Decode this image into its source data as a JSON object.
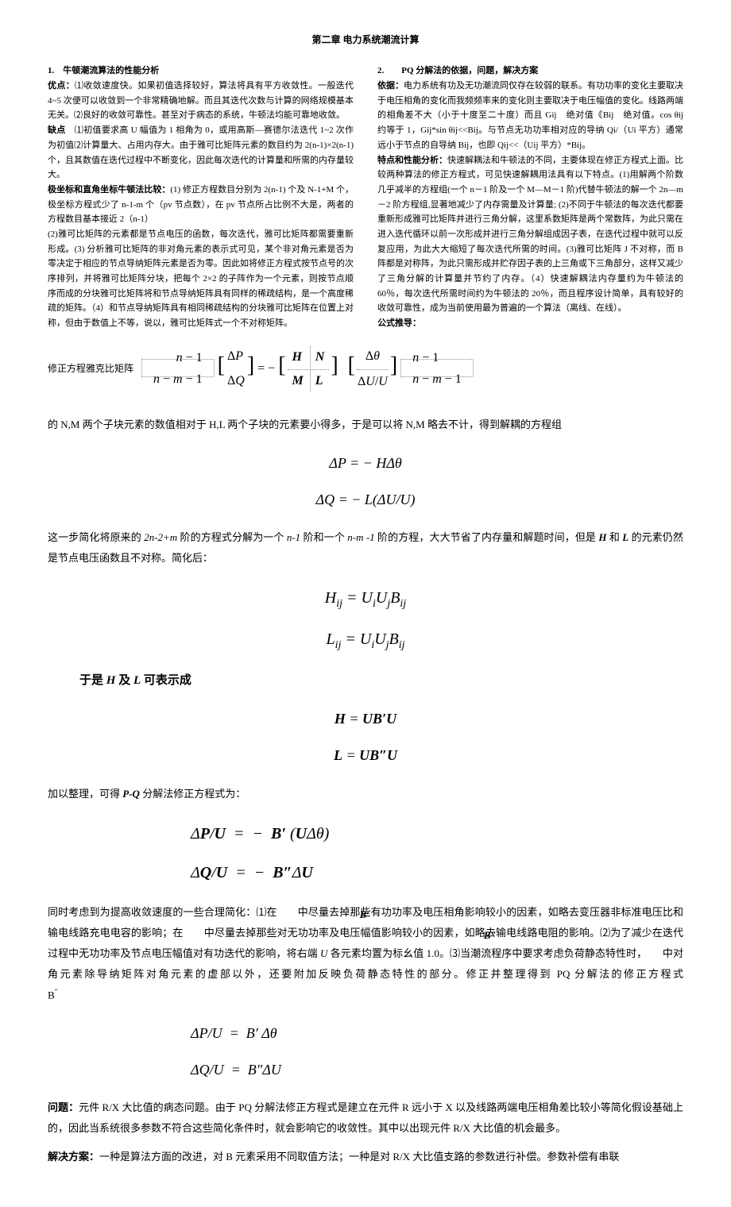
{
  "chapter_title": "第二章 电力系统潮流计算",
  "left_col": {
    "h1": "1.　牛顿潮流算法的性能分析",
    "p1_label": "优点：",
    "p1": "⑴收敛速度快。如果初值选择较好，算法将具有平方收敛性。一般迭代 4~5 次便可以收敛到一个非常精确地解。而且其迭代次数与计算的网络规模基本无关。⑵良好的收敛可靠性。甚至对于病态的系统，牛顿法均能可靠地收敛。",
    "p2_label": "缺点",
    "p2": "　⑴初值要求高 U 幅值为 1 相角为 0，或用高斯—赛德尔法迭代 1~2 次作为初值⑵计算量大、占用内存大。由于雅可比矩阵元素的数目约为 2(n-1)×2(n-1)个，且其数值在迭代过程中不断变化，因此每次迭代的计算量和所需的内存量较大。",
    "p3_label": "极坐标和直角坐标牛顿法比较：",
    "p3": "(1) 修正方程数目分别为 2(n-1) 个及 N-1+M 个，极坐标方程式少了 n-1-m 个（pv 节点数），在 pv 节点所占比例不大是，两者的方程数目基本接近 2（n-1）",
    "p4": "(2)雅可比矩阵的元素都是节点电压的函数，每次迭代，雅可比矩阵都需要重新形成。(3) 分析雅可比矩阵的非对角元素的表示式可见，某个非对角元素是否为零决定于相应的节点导纳矩阵元素是否为零。因此如将修正方程式按节点号的次序排列，并将雅可比矩阵分块，把每个 2×2 的子阵作为一个元素，则按节点顺序而成的分块雅可比矩阵将和节点导纳矩阵具有同样的稀疏结构，是一个高度稀疏的矩阵。（4）和节点导纳矩阵具有相同稀疏结构的分块雅可比矩阵在位置上对称，但由于数值上不等，说以，雅可比矩阵式一个不对称矩阵。"
  },
  "right_col": {
    "h1": "2.　　PQ 分解法的依据，问题，解决方案",
    "p1_label": "依据：",
    "p1": "电力系统有功及无功潮流同仅存在较弱的联系。有功功率的变化主要取决于电压相角的变化而我频频率来的变化则主要取决于电压幅值的变化。线路两端的相角差不大（小于十度至二十度）而且 Gij　绝对值《Bij　绝对值。cos θij　约等于 1，Gij*sin θij<<Bij。与节点无功功率相对应的导纳 Qi/（Ui 平方）通常远小于节点的自导纳 Bij，也即 Qij<<（Uij 平方）*Bij。",
    "p2_label": "特点和性能分析：",
    "p2": "快速解耦法和牛顿法的不同，主要体现在修正方程式上面。比较两种算法的修正方程式，可见快速解耦用法具有以下特点。(1)用解两个阶数几乎减半的方程组(一个 n－1 阶及一个 M—M－1 阶)代替牛顿法的解一个 2n—m －2 阶方程组,显著地减少了内存需量及计算量; (2)不同于牛顿法的每次迭代都要重新形成雅可比矩阵并进行三角分解，这里系数矩阵是两个常数阵，为此只需在进入迭代循环以前一次形成并进行三角分解组成因子表，在迭代过程中就可以反复应用，为此大大缩短了每次迭代所需的时间。(3)雅可比矩阵 J 不对称，而 B 阵都是对称阵，为此只需形成并贮存因子表的上三角或下三角部分，这样又减少了三角分解的计算量并节约了内存。（4）快速解耦法内存量约为牛顿法的 60％，每次迭代所需时间约为牛顿法的 20％，而且程序设计简单，具有较好的收敛可靠性，成为当前使用最为普遍的一个算法（离线、在线）。",
    "p3_label": "公式推导："
  },
  "matrix_label": "修正方程雅克比矩阵",
  "matrix_formula_html": "<span class='dotted-box'><table style='display:inline-table;vertical-align:middle;border-collapse:collapse'><tr><td style='text-align:right;padding:0 6px'><i>n</i> − 1</td></tr><tr><td style='text-align:right;padding:0 6px'><i>n</i> − <i>m</i> − 1</td></tr></table></span> <span style='font-size:28px'>[</span><table style='display:inline-table;vertical-align:middle'><tr><td>Δ<i>P</i></td></tr><tr><td>Δ<i>Q</i></td></tr></table><span style='font-size:28px'>]</span> = − <span style='font-size:28px'>[</span><table style='display:inline-table;vertical-align:middle'><tr><td style='padding:0 6px'><i><b>H</b></i></td><td style='padding:0 6px;border-left:1px dotted #888'><i><b>N</b></i></td></tr><tr><td style='padding:0 6px;border-top:1px dotted #888'><i><b>M</b></i></td><td style='padding:0 6px;border-top:1px dotted #888;border-left:1px dotted #888'><i><b>L</b></i></td></tr></table><span style='font-size:28px'>]</span> &nbsp; <span style='font-size:28px'>[</span><table style='display:inline-table;vertical-align:middle'><tr><td style='text-align:center'>Δ<i>θ</i></td></tr><tr><td style='border-top:1px dotted #888;text-align:center'>Δ<i>U</i>/<i>U</i></td></tr></table><span style='font-size:28px'>]</span><span class='dotted-box' style='margin-left:4px'><table style='display:inline-table;vertical-align:middle;border-collapse:collapse'><tr><td style='padding:0 6px'><i>n</i> − 1</td></tr><tr><td style='padding:0 6px'><i>n</i> − <i>m</i> − 1</td></tr></table></span>",
  "body1": "的 N,M 两个子块元素的数值相对于 H,L 两个子块的元素要小得多，于是可以将 N,M 略去不计，得到解耦的方程组",
  "f1a": "Δ<i>P</i> = − <i>H</i>Δ<i>θ</i>",
  "f1b": "Δ<i>Q</i> = − <i>L</i>(Δ<i>U</i>/<i>U</i>)",
  "body2_a": "这一步简化将原来的 ",
  "body2_b": "2n-2+m",
  "body2_c": " 阶的方程式分解为一个 ",
  "body2_d": "n-1",
  "body2_e": " 阶和一个 ",
  "body2_f": "n-m -1",
  "body2_g": " 阶的方程，大大节省了内存量和解题时间，但是 ",
  "body2_h": "H",
  "body2_i": " 和 ",
  "body2_j": "L",
  "body2_k": " 的元素仍然是节点电压函数且不对称。简化后：",
  "f2a": "<i>H<span class='sub'>ij</span></i> = <i>U<span class='sub'>i</span>U<span class='sub'>j</span>B<span class='sub'>ij</span></i>",
  "f2b": "<i>L<span class='sub'>ij</span></i> = <i>U<span class='sub'>i</span>U<span class='sub'>j</span>B<span class='sub'>ij</span></i>",
  "heading_hl": "于是 H 及 L 可表示成",
  "f3a": "<i><b>H</b></i> = <i><b>UB′U</b></i>",
  "f3b": "<i><b>L</b></i> = <i><b>UB″U</b></i>",
  "body3_a": "加以整理，可得 ",
  "body3_b": "P-Q",
  "body3_c": " 分解法修正方程式为：",
  "f4a": "Δ<i><b>P</b></i>/<i><b>U</b></i> &nbsp;=&nbsp; − &nbsp;<i><b>B′</b></i> (<i><b>U</b></i>Δ<i>θ</i>)",
  "f4b": "Δ<i><b>Q</b></i>/<i><b>U</b></i> &nbsp;=&nbsp; − &nbsp;<i><b>B″</b></i>Δ<i><b>U</b></i>",
  "body4": "同时考虑到为提高收敛速度的一些合理简化：⑴在　　中尽量去掉那些<span style='position:relative'><span style='position:absolute;left:-14px;top:-2px;font-family:serif;font-style:italic;font-weight:bold'>B′</span></span>有功功率及电压相角影响较小的因素，如略去变压器非标准电压比和输电线路充电电容的影响；在　　中尽量去掉那些对无功功率及电压幅值影响较小的因素，如略<span style='position:relative'><span style='position:absolute;left:-2px;top:-2px;font-family:serif;font-style:italic;font-weight:bold'>B″</span></span>去输电线路电阻的影响。⑵为了减少在迭代过程中无功功率及节点电压幅值对有功迭代的影响，将右端 <span class='italic'>U</span> 各元素均置为标幺值 1.0。⑶当潮流程序中要求考虑负荷静态特性时，　　中对角元素除导纳矩阵对角元素的虚部以外，还要附加反映负荷静态特性的部分。修正并整理得到 PQ 分解法的修正方程式　　　　　　　　　　　　　　　B<span class='sup'>″</span>",
  "f5a": "Δ<i>P</i>/<i>U</i> &nbsp;=&nbsp; <i>B′</i> Δ<i>θ</i>",
  "f5b": "Δ<i>Q</i>/<i>U</i> &nbsp;=&nbsp; <i>B″</i>Δ<i>U</i>",
  "body5_label": "问题：",
  "body5": "元件 R/X 大比值的病态问题。由于 PQ 分解法修正方程式是建立在元件 R 远小于 X 以及线路两端电压相角差比较小等简化假设基础上的，因此当系统很多参数不符合这些简化条件时，就会影响它的收敛性。其中以出现元件 R/X 大比值的机会最多。",
  "body6_label": "解决方案：",
  "body6": "一种是算法方面的改进，对 B 元素采用不同取值方法；一种是对 R/X 大比值支路的参数进行补偿。参数补偿有串联"
}
